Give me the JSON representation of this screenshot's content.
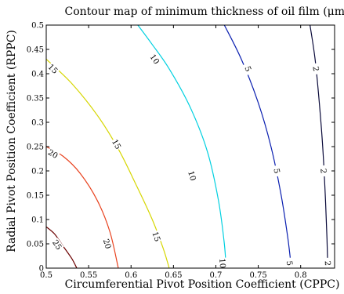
{
  "chart_data": {
    "type": "contour",
    "title": "Contour map of minimum thickness of oil film (μm)",
    "xlabel": "Circumferential Pivot Position Coefficient (CPPC)",
    "ylabel": "Radial Pivot Position Coefficient (RPPC)",
    "xlim": [
      0.5,
      0.84
    ],
    "ylim": [
      0,
      0.5
    ],
    "x_ticks": [
      0.5,
      0.55,
      0.6,
      0.65,
      0.7,
      0.75,
      0.8
    ],
    "y_ticks": [
      0,
      0.05,
      0.1,
      0.15,
      0.2,
      0.25,
      0.3,
      0.35,
      0.4,
      0.45,
      0.5
    ],
    "x_tick_labels": [
      "0.5",
      "0.55",
      "0.6",
      "0.65",
      "0.7",
      "0.75",
      "0.8"
    ],
    "y_tick_labels": [
      "0",
      "0.05",
      "0.1",
      "0.15",
      "0.2",
      "0.25",
      "0.3",
      "0.35",
      "0.4",
      "0.45",
      "0.5"
    ],
    "grid": false,
    "contours": [
      {
        "level": 25,
        "label": "25",
        "color": "#6b0000",
        "points": [
          [
            0.5,
            0.085
          ],
          [
            0.51,
            0.07
          ],
          [
            0.52,
            0.045
          ],
          [
            0.53,
            0.02
          ],
          [
            0.536,
            0
          ]
        ],
        "labels": [
          [
            0.513,
            0.048
          ]
        ]
      },
      {
        "level": 20,
        "label": "20",
        "color": "#e8401c",
        "points": [
          [
            0.5,
            0.25
          ],
          [
            0.52,
            0.23
          ],
          [
            0.54,
            0.195
          ],
          [
            0.56,
            0.14
          ],
          [
            0.575,
            0.075
          ],
          [
            0.585,
            0
          ]
        ],
        "labels": [
          [
            0.508,
            0.235
          ],
          [
            0.572,
            0.05
          ]
        ]
      },
      {
        "level": 15,
        "label": "15",
        "color": "#d6d600",
        "points": [
          [
            0.5,
            0.43
          ],
          [
            0.53,
            0.38
          ],
          [
            0.56,
            0.315
          ],
          [
            0.585,
            0.245
          ],
          [
            0.605,
            0.175
          ],
          [
            0.625,
            0.1
          ],
          [
            0.638,
            0.04
          ],
          [
            0.645,
            0
          ]
        ],
        "labels": [
          [
            0.508,
            0.41
          ],
          [
            0.583,
            0.255
          ],
          [
            0.63,
            0.065
          ]
        ]
      },
      {
        "level": 10,
        "label": "10",
        "color": "#00d0e0",
        "points": [
          [
            0.608,
            0.5
          ],
          [
            0.625,
            0.46
          ],
          [
            0.645,
            0.41
          ],
          [
            0.67,
            0.33
          ],
          [
            0.69,
            0.24
          ],
          [
            0.703,
            0.14
          ],
          [
            0.71,
            0.05
          ],
          [
            0.712,
            0
          ]
        ],
        "labels": [
          [
            0.628,
            0.43
          ],
          [
            0.672,
            0.19
          ],
          [
            0.708,
            0.01
          ]
        ]
      },
      {
        "level": 5,
        "label": "5",
        "color": "#0a1fb0",
        "points": [
          [
            0.71,
            0.5
          ],
          [
            0.73,
            0.43
          ],
          [
            0.75,
            0.34
          ],
          [
            0.765,
            0.25
          ],
          [
            0.777,
            0.15
          ],
          [
            0.785,
            0.06
          ],
          [
            0.789,
            0
          ]
        ],
        "labels": [
          [
            0.738,
            0.41
          ],
          [
            0.772,
            0.2
          ],
          [
            0.787,
            0.01
          ]
        ]
      },
      {
        "level": 2,
        "label": "2",
        "color": "#0a0a3a",
        "points": [
          [
            0.811,
            0.5
          ],
          [
            0.817,
            0.43
          ],
          [
            0.822,
            0.34
          ],
          [
            0.826,
            0.25
          ],
          [
            0.829,
            0.15
          ],
          [
            0.831,
            0.06
          ],
          [
            0.832,
            0
          ]
        ],
        "labels": [
          [
            0.818,
            0.41
          ],
          [
            0.827,
            0.2
          ],
          [
            0.832,
            0.01
          ]
        ]
      }
    ]
  }
}
